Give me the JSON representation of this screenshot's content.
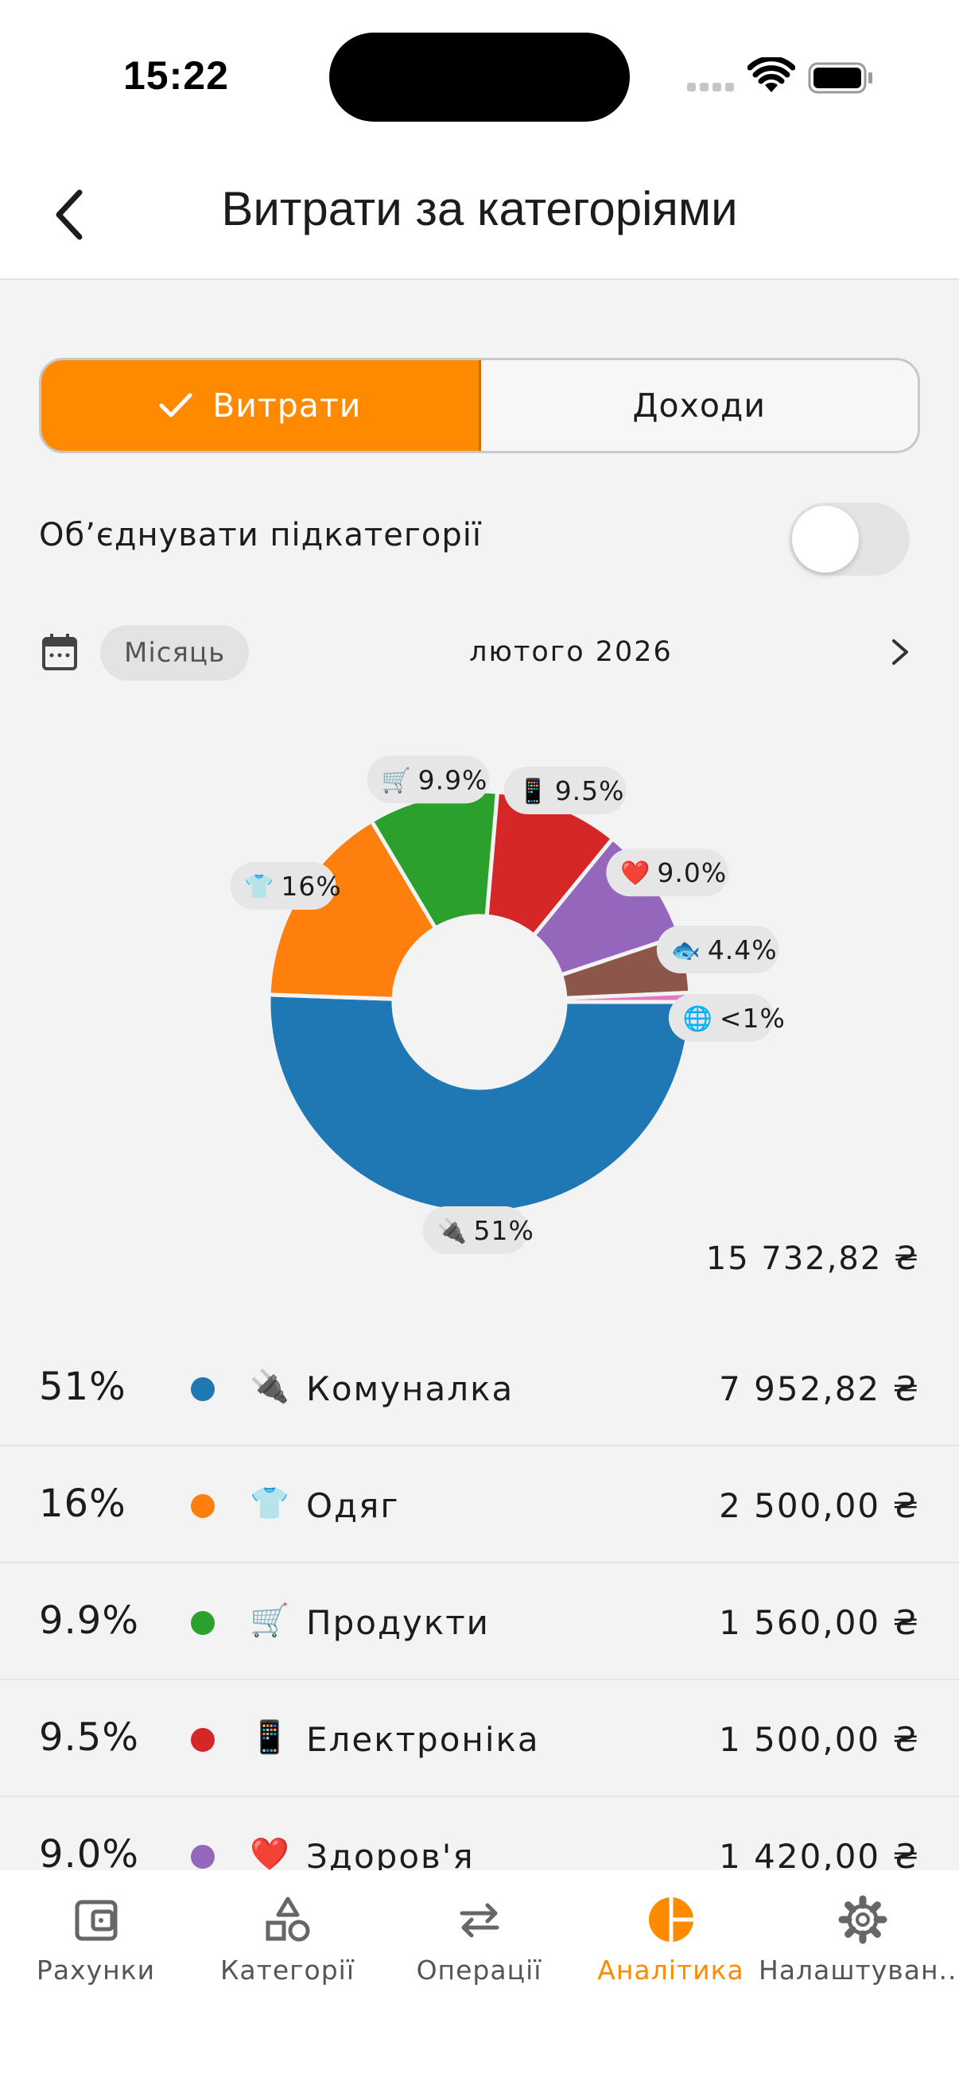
{
  "status_bar": {
    "time": "15:22"
  },
  "header": {
    "title": "Витрати за категоріями",
    "back_icon": "chevron-left-icon"
  },
  "segments": [
    {
      "label": "Витрати",
      "selected": true
    },
    {
      "label": "Доходи",
      "selected": false
    }
  ],
  "merge_toggle": {
    "label": "Об’єднувати підкатегорії",
    "on": false
  },
  "period": {
    "mode": "Місяць",
    "text": "лютого 2026"
  },
  "chart_data": {
    "type": "pie",
    "donut": true,
    "total": "15 732,82 ₴",
    "slices": [
      {
        "name": "Комуналка",
        "value": 7952.82,
        "label": "51%",
        "emoji": "🔌",
        "color": "#1f77b4"
      },
      {
        "name": "Одяг",
        "value": 2500.0,
        "label": "16%",
        "emoji": "👕",
        "color": "#ff7f0e"
      },
      {
        "name": "Продукти",
        "value": 1560.0,
        "label": "9.9%",
        "emoji": "🛒",
        "color": "#2ca02c"
      },
      {
        "name": "Електроніка",
        "value": 1500.0,
        "label": "9.5%",
        "emoji": "📱",
        "color": "#d62728"
      },
      {
        "name": "Здоров'я",
        "value": 1420.0,
        "label": "9.0%",
        "emoji": "❤️",
        "color": "#9467bd"
      },
      {
        "value": 690.0,
        "label": "4.4%",
        "emoji": "🐟",
        "color": "#8c564b"
      },
      {
        "value": 110.0,
        "label": "<1%",
        "emoji": "🌐",
        "color": "#e377c2"
      }
    ]
  },
  "list": [
    {
      "pct": "51%",
      "emoji": "🔌",
      "name": "Комуналка",
      "amount": "7 952,82 ₴",
      "color": "#1f77b4"
    },
    {
      "pct": "16%",
      "emoji": "👕",
      "name": "Одяг",
      "amount": "2 500,00 ₴",
      "color": "#ff7f0e"
    },
    {
      "pct": "9.9%",
      "emoji": "🛒",
      "name": "Продукти",
      "amount": "1 560,00 ₴",
      "color": "#2ca02c"
    },
    {
      "pct": "9.5%",
      "emoji": "📱",
      "name": "Електроніка",
      "amount": "1 500,00 ₴",
      "color": "#d62728"
    },
    {
      "pct": "9.0%",
      "emoji": "❤️",
      "name": "Здоров'я",
      "amount": "1 420,00 ₴",
      "color": "#9467bd"
    }
  ],
  "tabs": [
    {
      "label": "Рахунки",
      "icon": "wallet-icon"
    },
    {
      "label": "Категорії",
      "icon": "shapes-icon"
    },
    {
      "label": "Операції",
      "icon": "transfer-arrows-icon"
    },
    {
      "label": "Аналітика",
      "icon": "pie-chart-icon",
      "active": true
    },
    {
      "label": "Налаштуван...",
      "icon": "gear-icon"
    }
  ],
  "colors": {
    "accent": "#ff8a00"
  }
}
